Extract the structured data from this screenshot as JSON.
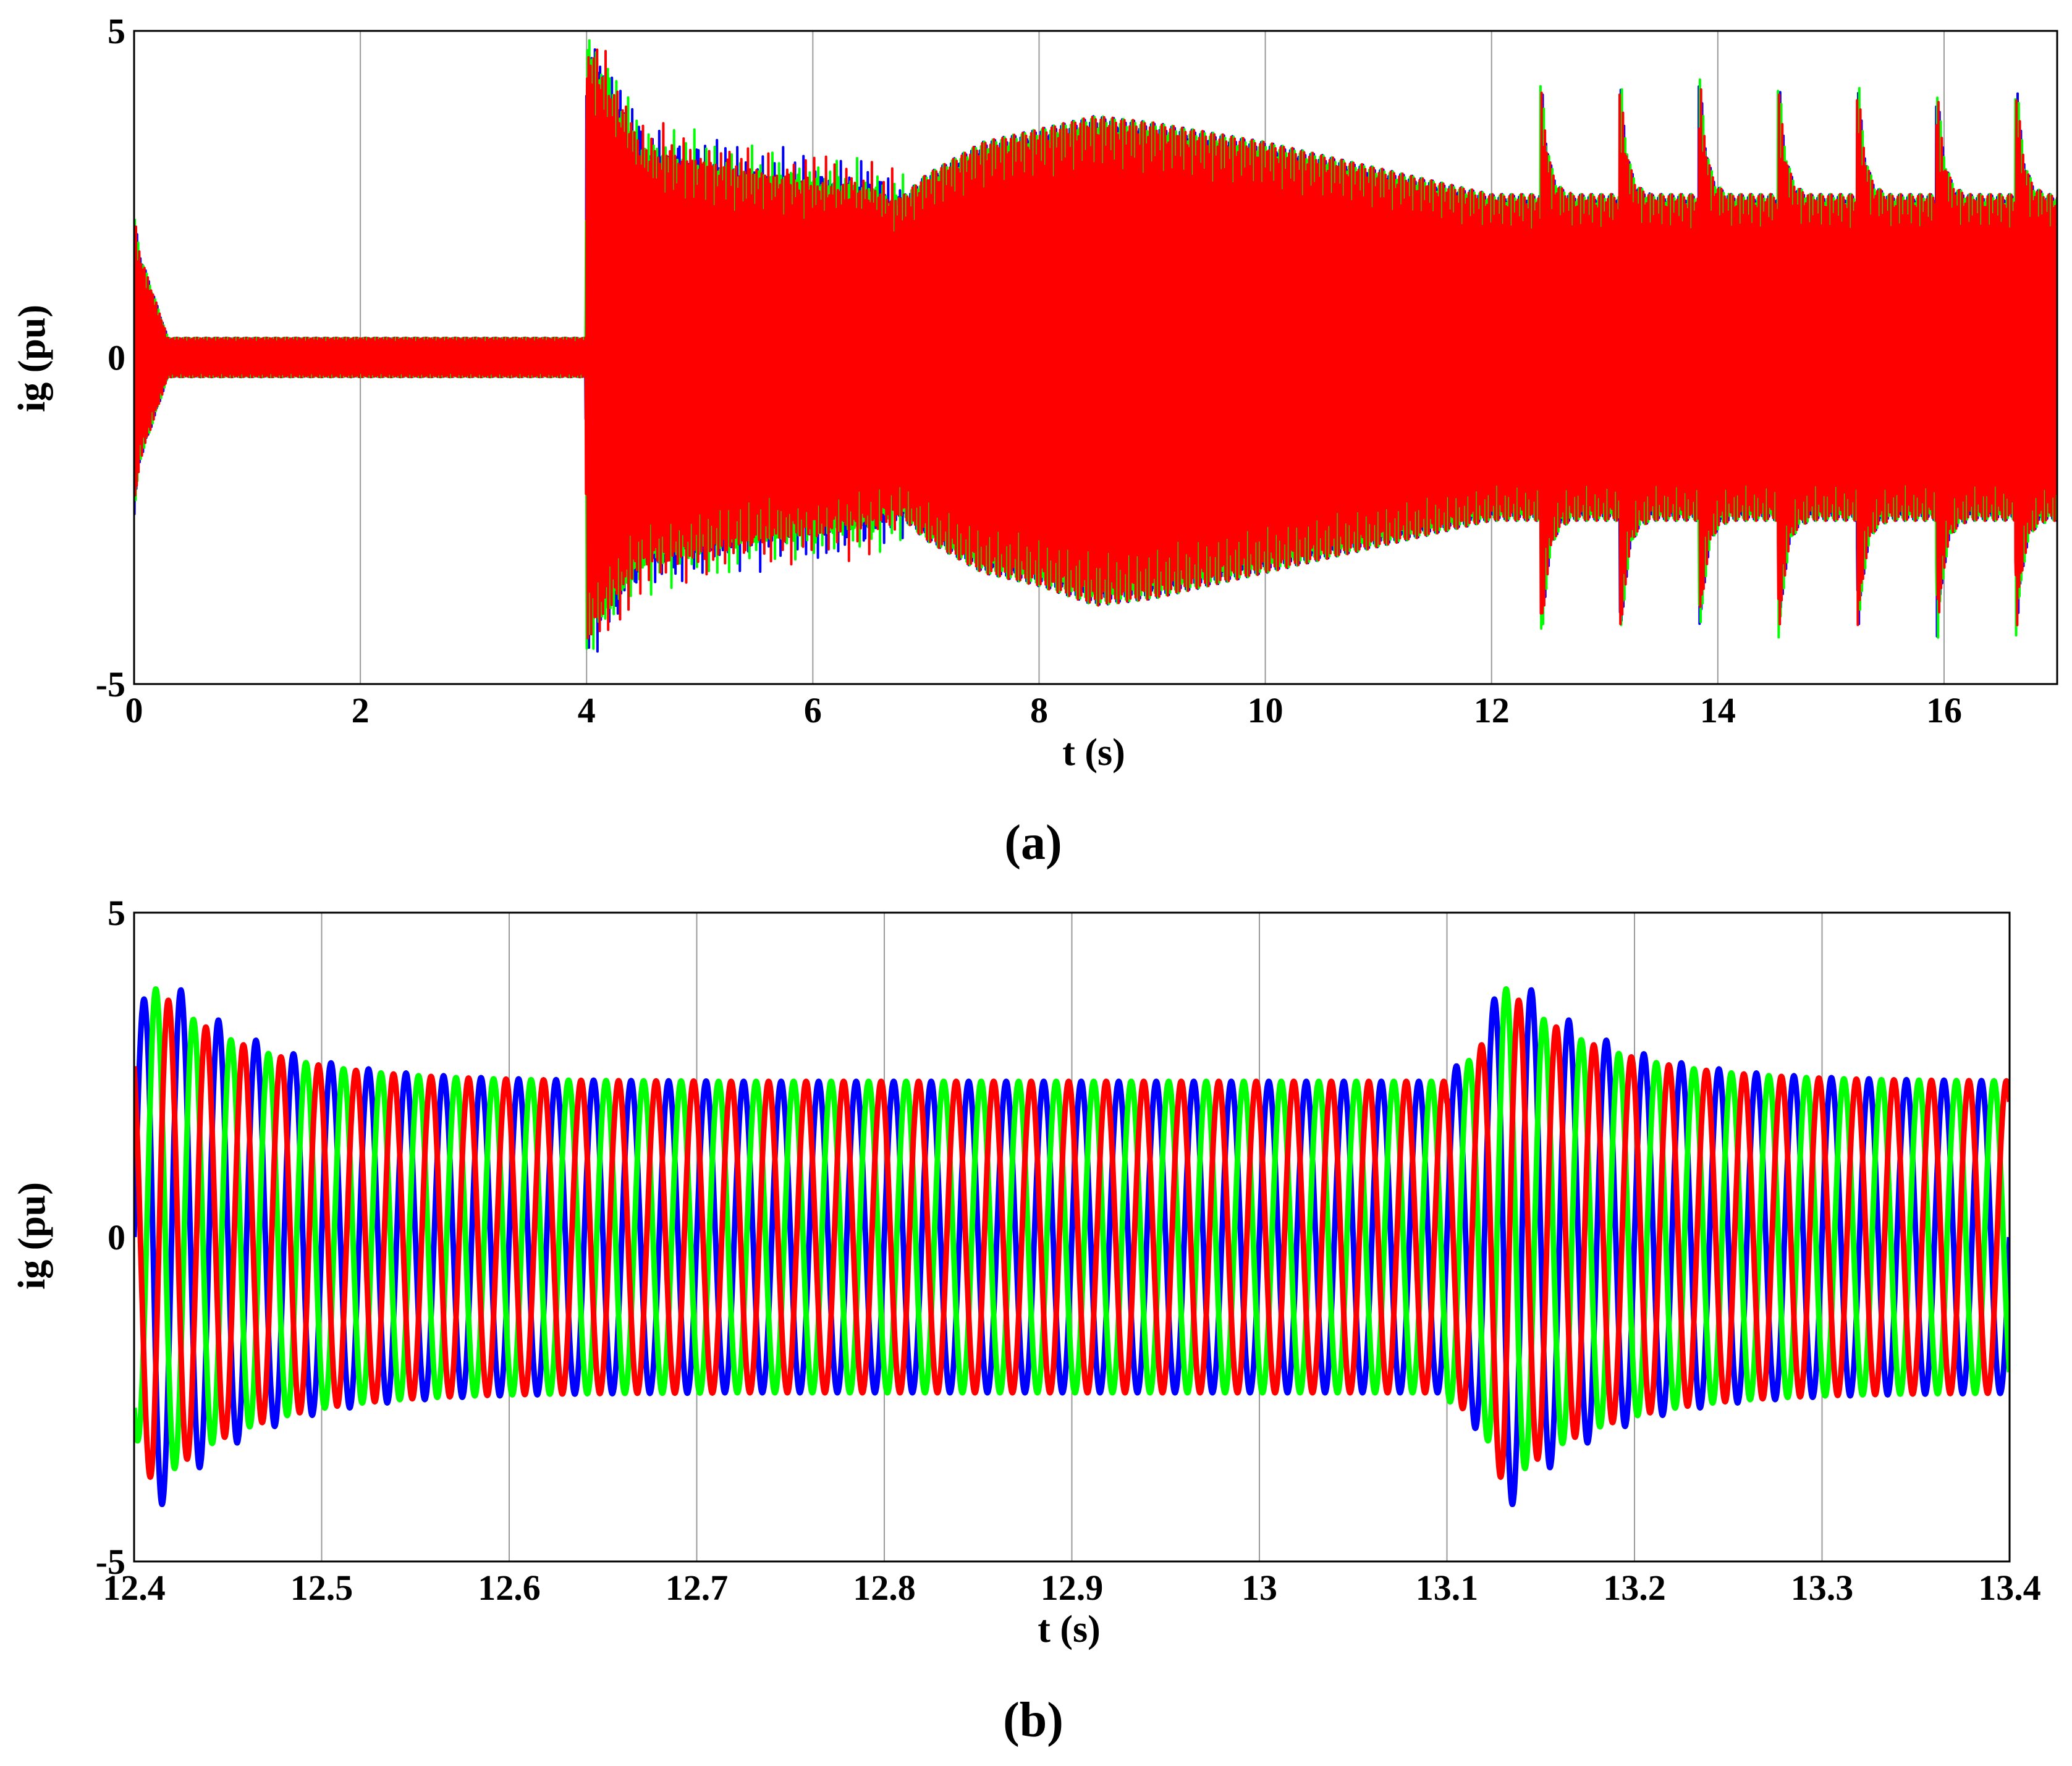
{
  "chart_data": [
    {
      "type": "line",
      "panel_label": "(a)",
      "xlabel": "t (s)",
      "ylabel": "ig (pu)",
      "xlim": [
        0,
        17
      ],
      "ylim": [
        -5,
        5
      ],
      "xticks": [
        "0",
        "2",
        "4",
        "6",
        "8",
        "10",
        "12",
        "14",
        "16"
      ],
      "yticks": [
        "-5",
        "0",
        "5"
      ],
      "grid": true,
      "legend": "none",
      "description_of_data": "three-phase grid current envelope",
      "envelope": {
        "t": [
          0,
          0.05,
          0.3,
          3.99,
          4.0,
          4.5,
          5.0,
          5.5,
          6.0,
          6.5,
          6.75,
          7.0,
          7.5,
          8.0,
          8.5,
          9.0,
          10.0,
          11.0,
          12.0,
          14.0,
          17.0
        ],
        "max": [
          2.2,
          1.6,
          0.3,
          0.3,
          4.8,
          3.2,
          3.0,
          2.8,
          2.7,
          2.6,
          2.4,
          2.8,
          3.3,
          3.5,
          3.7,
          3.6,
          3.3,
          2.9,
          2.5,
          2.5,
          2.5
        ],
        "min": [
          -2.5,
          -1.6,
          -0.3,
          -0.3,
          -4.3,
          -3.2,
          -3.0,
          -2.8,
          -2.7,
          -2.6,
          -2.4,
          -2.8,
          -3.3,
          -3.5,
          -3.8,
          -3.7,
          -3.3,
          -2.9,
          -2.5,
          -2.5,
          -2.5
        ]
      },
      "spikes": {
        "t": [
          12.45,
          13.15,
          13.85,
          14.55,
          15.25,
          15.95,
          16.65
        ],
        "max": [
          4.1,
          4.1,
          4.2,
          4.1,
          4.1,
          4.0,
          4.1
        ],
        "min": [
          -4.3,
          -4.3,
          -4.2,
          -4.3,
          -4.2,
          -4.3,
          -4.2
        ]
      },
      "series": [
        {
          "color": "#0000ff"
        },
        {
          "color": "#00ff00"
        },
        {
          "color": "#ff0000"
        }
      ]
    },
    {
      "type": "line",
      "panel_label": "(b)",
      "xlabel": "t (s)",
      "ylabel": "ig (pu)",
      "xlim": [
        12.4,
        13.4
      ],
      "ylim": [
        -5,
        5
      ],
      "xticks": [
        "12.4",
        "12.5",
        "12.6",
        "12.7",
        "12.8",
        "12.9",
        "13",
        "13.1",
        "13.2",
        "13.3",
        "13.4"
      ],
      "yticks": [
        "-5",
        "0",
        "5"
      ],
      "grid": true,
      "legend": "none",
      "frequency_hz": 50,
      "steady_amplitude": 2.4,
      "disturbances": [
        {
          "t": 12.41,
          "peak": 4.2,
          "min": -4.3
        },
        {
          "t": 13.13,
          "peak": 4.1,
          "min": -4.3
        }
      ],
      "series": [
        {
          "color": "#0000ff",
          "phase_deg": 0
        },
        {
          "color": "#00ff00",
          "phase_deg": -120
        },
        {
          "color": "#ff0000",
          "phase_deg": 120
        }
      ]
    }
  ]
}
